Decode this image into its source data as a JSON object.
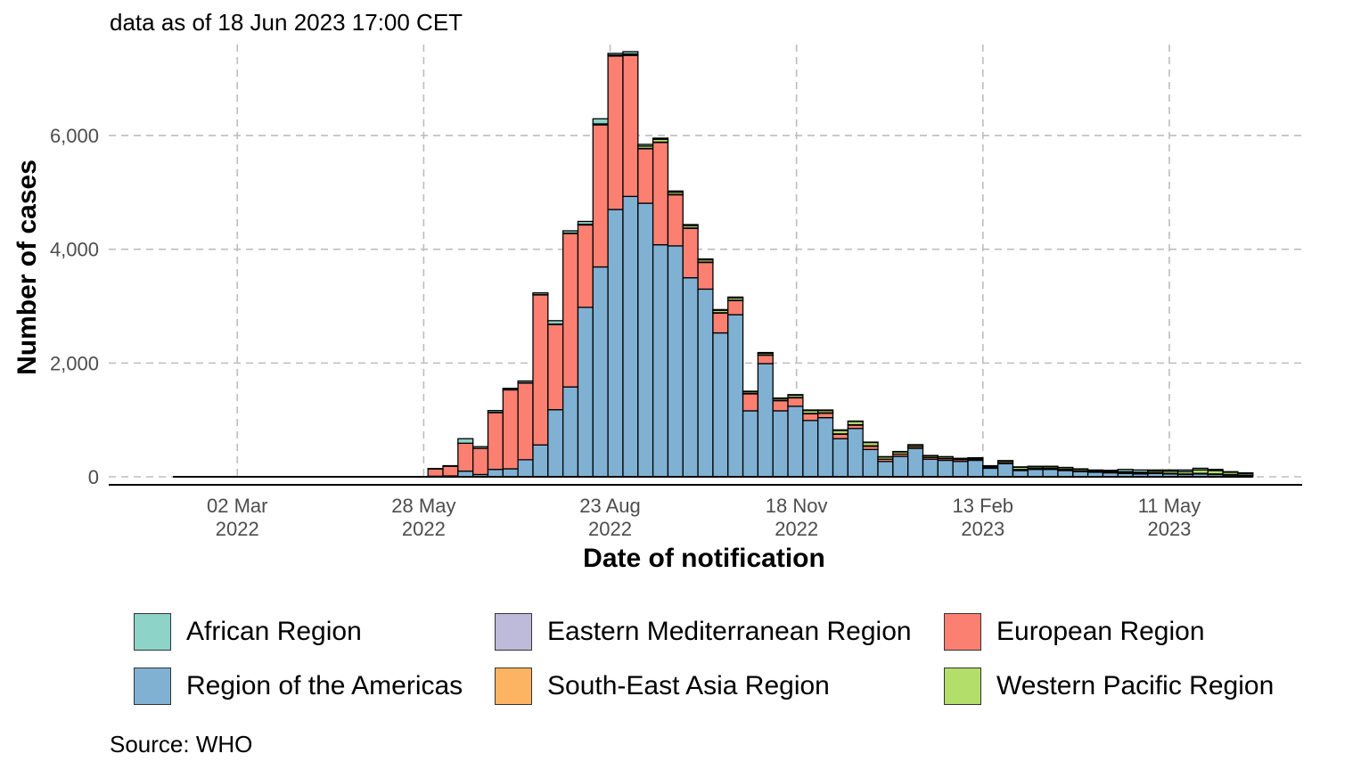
{
  "chart_data": {
    "type": "bar",
    "stacked": true,
    "subtitle": "data as of 18 Jun 2023 17:00 CET",
    "xlabel": "Date of notification",
    "ylabel": "Number of cases",
    "caption": "Source: WHO",
    "ylim": [
      0,
      7600
    ],
    "xlim": [
      "2022-01-01",
      "2023-07-12"
    ],
    "y_ticks": [
      0,
      2000,
      4000,
      6000
    ],
    "y_tick_labels": [
      "0",
      "2,000",
      "4,000",
      "6,000"
    ],
    "x_ticks": [
      {
        "date": "2022-03-02",
        "line1": "02 Mar",
        "line2": "2022"
      },
      {
        "date": "2022-05-28",
        "line1": "28 May",
        "line2": "2022"
      },
      {
        "date": "2022-08-23",
        "line1": "23 Aug",
        "line2": "2022"
      },
      {
        "date": "2022-11-18",
        "line1": "18 Nov",
        "line2": "2022"
      },
      {
        "date": "2023-02-13",
        "line1": "13 Feb",
        "line2": "2023"
      },
      {
        "date": "2023-05-11",
        "line1": "11 May",
        "line2": "2023"
      }
    ],
    "grid": true,
    "legend_position": "bottom",
    "legend": [
      {
        "name": "African Region",
        "color": "#8dd3c7"
      },
      {
        "name": "Eastern Mediterranean Region",
        "color": "#bebada"
      },
      {
        "name": "European Region",
        "color": "#fb8072"
      },
      {
        "name": "Region of the Americas",
        "color": "#80b1d3"
      },
      {
        "name": "South-East Asia Region",
        "color": "#fdb462"
      },
      {
        "name": "Western Pacific Region",
        "color": "#b3de69"
      }
    ],
    "week_start": [
      "2022-01-31",
      "2022-02-07",
      "2022-02-14",
      "2022-02-21",
      "2022-02-28",
      "2022-03-07",
      "2022-03-14",
      "2022-03-21",
      "2022-03-28",
      "2022-04-04",
      "2022-04-11",
      "2022-04-18",
      "2022-04-25",
      "2022-05-02",
      "2022-05-09",
      "2022-05-16",
      "2022-05-23",
      "2022-05-30",
      "2022-06-06",
      "2022-06-13",
      "2022-06-20",
      "2022-06-27",
      "2022-07-04",
      "2022-07-11",
      "2022-07-18",
      "2022-07-25",
      "2022-08-01",
      "2022-08-08",
      "2022-08-15",
      "2022-08-22",
      "2022-08-29",
      "2022-09-05",
      "2022-09-12",
      "2022-09-19",
      "2022-09-26",
      "2022-10-03",
      "2022-10-10",
      "2022-10-17",
      "2022-10-24",
      "2022-10-31",
      "2022-11-07",
      "2022-11-14",
      "2022-11-21",
      "2022-11-28",
      "2022-12-05",
      "2022-12-12",
      "2022-12-19",
      "2022-12-26",
      "2023-01-02",
      "2023-01-09",
      "2023-01-16",
      "2023-01-23",
      "2023-01-30",
      "2023-02-06",
      "2023-02-13",
      "2023-02-20",
      "2023-02-27",
      "2023-03-06",
      "2023-03-13",
      "2023-03-20",
      "2023-03-27",
      "2023-04-03",
      "2023-04-10",
      "2023-04-17",
      "2023-04-24",
      "2023-05-01",
      "2023-05-08",
      "2023-05-15",
      "2023-05-22",
      "2023-05-29",
      "2023-06-05",
      "2023-06-12"
    ],
    "series": [
      {
        "name": "African Region",
        "color": "#8dd3c7",
        "values": [
          0,
          0,
          0,
          0,
          0,
          0,
          0,
          0,
          0,
          0,
          0,
          0,
          0,
          0,
          0,
          0,
          0,
          5,
          10,
          80,
          30,
          30,
          20,
          30,
          30,
          60,
          40,
          50,
          90,
          30,
          40,
          30,
          20,
          20,
          20,
          15,
          15,
          15,
          10,
          10,
          10,
          10,
          10,
          10,
          10,
          5,
          5,
          5,
          5,
          5,
          5,
          5,
          5,
          5,
          5,
          5,
          5,
          5,
          5,
          5,
          5,
          5,
          10,
          40,
          40,
          20,
          20,
          30,
          30,
          20,
          10,
          10
        ]
      },
      {
        "name": "Eastern Mediterranean Region",
        "color": "#bebada",
        "values": [
          0,
          0,
          0,
          0,
          0,
          0,
          0,
          0,
          0,
          0,
          0,
          0,
          0,
          0,
          0,
          0,
          0,
          0,
          0,
          0,
          0,
          5,
          5,
          5,
          5,
          5,
          5,
          5,
          5,
          5,
          5,
          5,
          5,
          5,
          5,
          5,
          5,
          5,
          5,
          5,
          5,
          5,
          5,
          5,
          5,
          5,
          5,
          0,
          0,
          0,
          0,
          0,
          0,
          0,
          0,
          0,
          0,
          0,
          0,
          0,
          0,
          0,
          0,
          0,
          0,
          0,
          0,
          0,
          0,
          0,
          0,
          0
        ]
      },
      {
        "name": "European Region",
        "color": "#fb8072",
        "values": [
          0,
          0,
          0,
          0,
          0,
          0,
          0,
          0,
          0,
          0,
          0,
          0,
          0,
          0,
          0,
          0,
          0,
          130,
          170,
          490,
          460,
          1000,
          1390,
          1350,
          2640,
          1500,
          2700,
          1450,
          2500,
          2700,
          2480,
          960,
          1800,
          900,
          870,
          470,
          350,
          250,
          300,
          150,
          180,
          150,
          120,
          80,
          80,
          60,
          60,
          40,
          40,
          30,
          30,
          30,
          30,
          20,
          20,
          20,
          20,
          20,
          20,
          20,
          15,
          15,
          15,
          10,
          10,
          10,
          10,
          10,
          10,
          10,
          10,
          10
        ]
      },
      {
        "name": "Region of the Americas",
        "color": "#80b1d3",
        "values": [
          0,
          0,
          0,
          0,
          0,
          0,
          0,
          0,
          0,
          0,
          0,
          0,
          0,
          0,
          0,
          0,
          0,
          10,
          15,
          100,
          40,
          130,
          140,
          300,
          560,
          1180,
          1580,
          2980,
          3690,
          4700,
          4930,
          4810,
          4080,
          4060,
          3500,
          3300,
          2530,
          2850,
          1160,
          1990,
          1160,
          1240,
          990,
          1040,
          670,
          850,
          480,
          270,
          360,
          500,
          310,
          290,
          270,
          290,
          150,
          230,
          110,
          130,
          130,
          110,
          90,
          80,
          70,
          60,
          50,
          60,
          50,
          40,
          50,
          40,
          30,
          20
        ]
      },
      {
        "name": "South-East Asia Region",
        "color": "#fdb462",
        "values": [
          0,
          0,
          0,
          0,
          0,
          0,
          0,
          0,
          0,
          0,
          0,
          0,
          0,
          0,
          0,
          0,
          0,
          0,
          0,
          0,
          0,
          0,
          0,
          0,
          0,
          0,
          0,
          0,
          0,
          0,
          0,
          0,
          0,
          0,
          0,
          0,
          0,
          0,
          0,
          0,
          0,
          0,
          0,
          0,
          0,
          0,
          0,
          0,
          0,
          0,
          0,
          0,
          0,
          0,
          0,
          0,
          0,
          0,
          0,
          0,
          0,
          0,
          0,
          0,
          0,
          0,
          0,
          0,
          0,
          0,
          0,
          0
        ]
      },
      {
        "name": "Western Pacific Region",
        "color": "#b3de69",
        "values": [
          0,
          0,
          0,
          0,
          0,
          0,
          0,
          0,
          0,
          0,
          0,
          0,
          0,
          0,
          0,
          0,
          0,
          0,
          0,
          0,
          0,
          0,
          0,
          0,
          0,
          0,
          0,
          5,
          10,
          10,
          20,
          40,
          50,
          40,
          40,
          40,
          40,
          40,
          30,
          30,
          30,
          40,
          50,
          40,
          60,
          60,
          60,
          40,
          40,
          30,
          30,
          30,
          20,
          20,
          20,
          30,
          40,
          30,
          30,
          30,
          30,
          20,
          20,
          20,
          20,
          30,
          40,
          40,
          60,
          60,
          40,
          30
        ]
      }
    ]
  }
}
